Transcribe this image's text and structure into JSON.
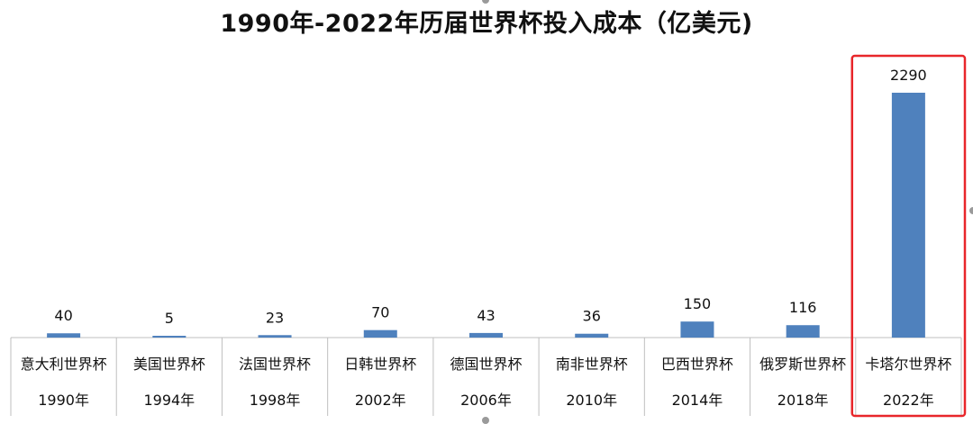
{
  "title": "1990年-2022年历届世界杯投入成本（亿美元)",
  "chart_data": {
    "type": "bar",
    "title": "1990年-2022年历届世界杯投入成本（亿美元)",
    "xlabel": "",
    "ylabel": "",
    "ylim": [
      0,
      2290
    ],
    "grid": false,
    "legend": "none",
    "categories": [
      "意大利世界杯",
      "美国世界杯",
      "法国世界杯",
      "日韩世界杯",
      "德国世界杯",
      "南非世界杯",
      "巴西世界杯",
      "俄罗斯世界杯",
      "卡塔尔世界杯"
    ],
    "years": [
      "1990年",
      "1994年",
      "1998年",
      "2002年",
      "2006年",
      "2010年",
      "2014年",
      "2018年",
      "2022年"
    ],
    "series": [
      {
        "values": [
          40,
          5,
          23,
          70,
          43,
          36,
          150,
          116,
          2290
        ]
      }
    ],
    "value_labels": [
      "40",
      "5",
      "23",
      "70",
      "43",
      "36",
      "150",
      "116",
      "2290"
    ],
    "highlight_index": 8,
    "colors": {
      "bar": "#4F81BD",
      "highlight_box": "#E8262A",
      "axis": "#BFBFBF",
      "text": "#111111"
    }
  }
}
